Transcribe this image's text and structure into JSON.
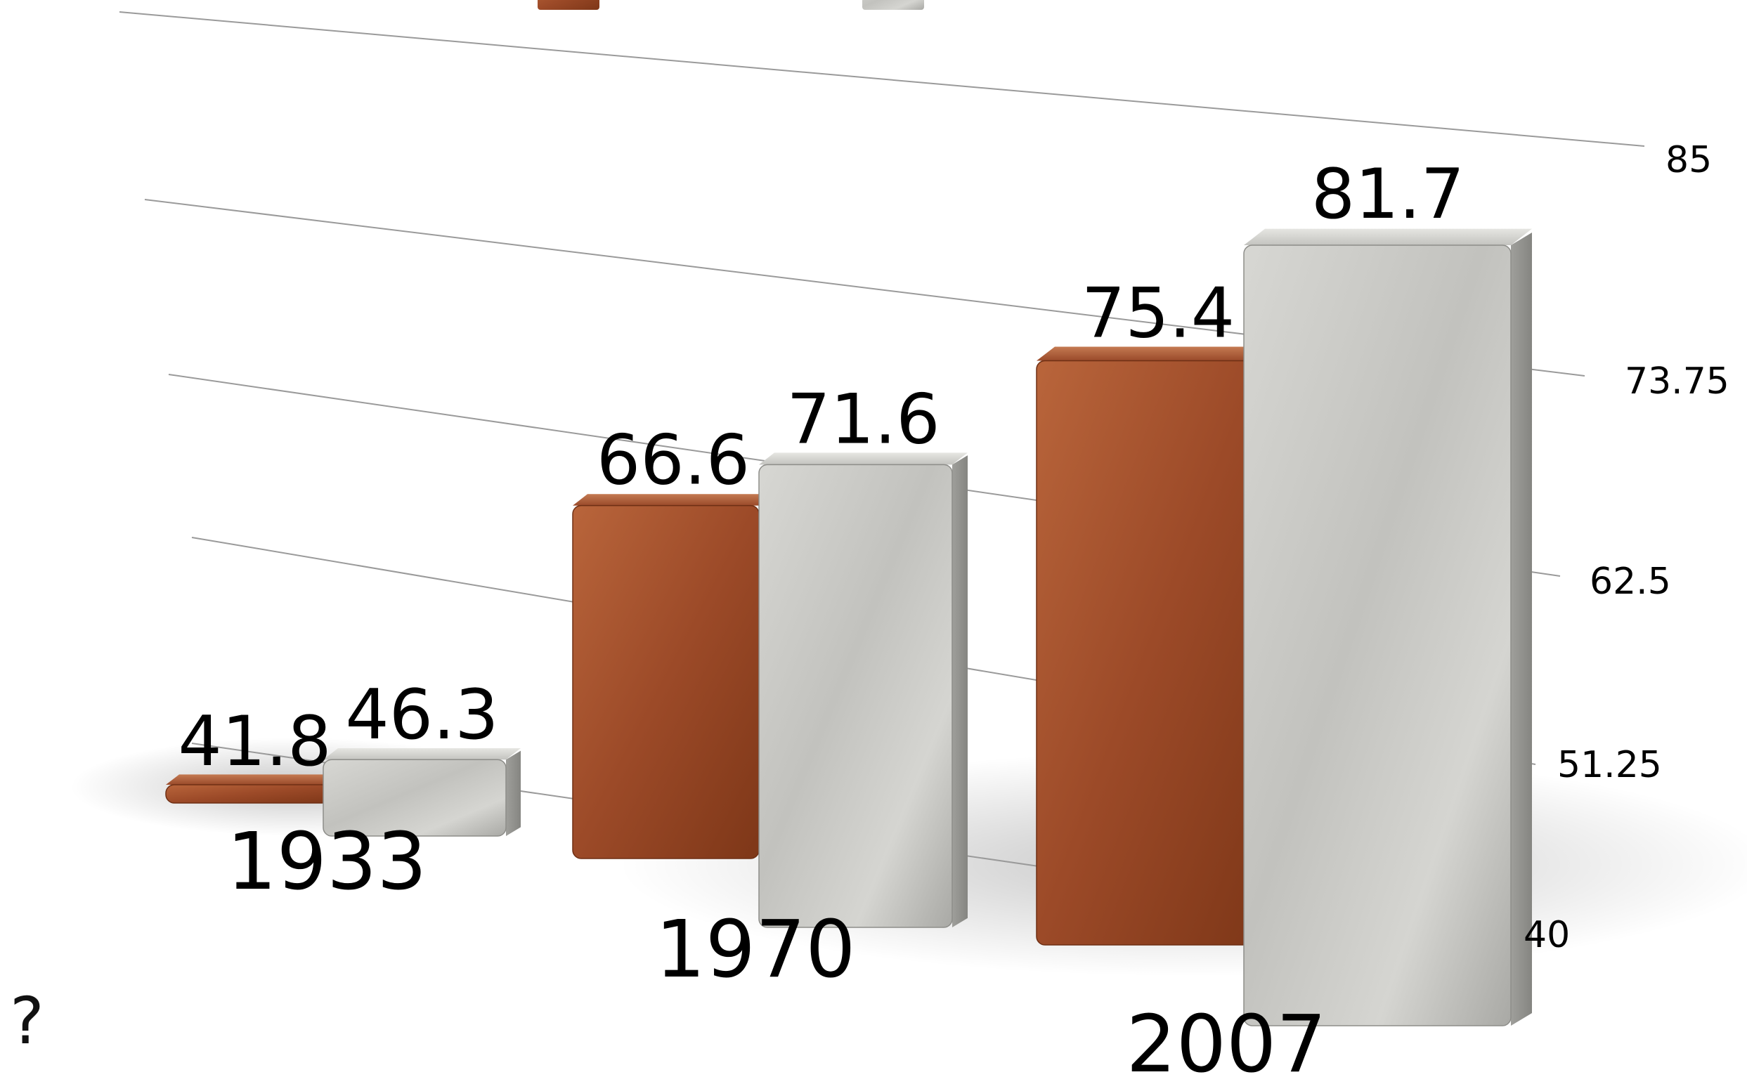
{
  "chart_data": {
    "type": "bar",
    "categories": [
      "1933",
      "1970",
      "2007"
    ],
    "series": [
      {
        "values": [
          41.8,
          66.6,
          75.4
        ],
        "color": "#a5532f"
      },
      {
        "values": [
          46.3,
          71.6,
          81.7
        ],
        "color": "#b9b9b6"
      }
    ],
    "ylim": [
      40,
      85
    ],
    "yticks": [
      "40",
      "51.25",
      "62.5",
      "73.75",
      "85"
    ],
    "grid": true,
    "legend": "top-center",
    "style": "3d-perspective",
    "title": "",
    "xlabel": "",
    "ylabel": ""
  },
  "corner_mark": "?"
}
